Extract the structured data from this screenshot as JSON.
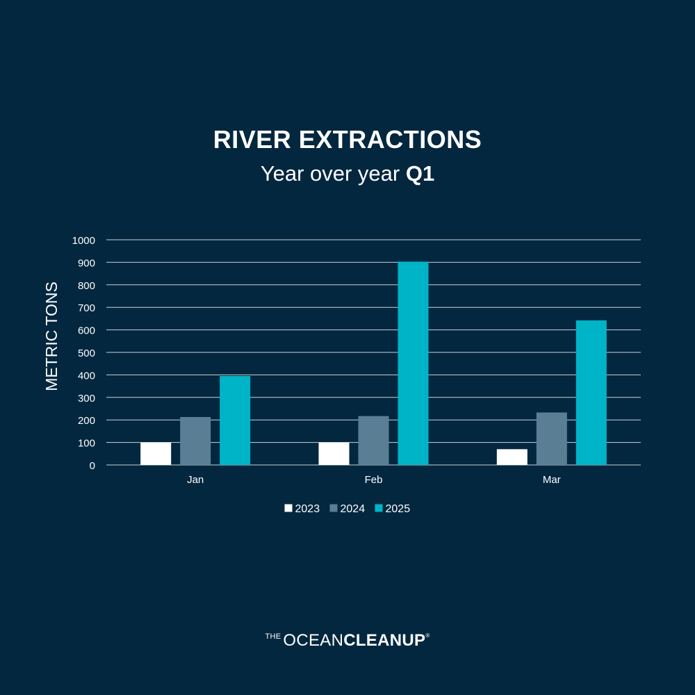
{
  "title": "RIVER EXTRACTIONS",
  "subtitle": {
    "text": "Year over year",
    "emphasis": "Q1"
  },
  "chart_data": {
    "type": "bar",
    "categories": [
      "Jan",
      "Feb",
      "Mar"
    ],
    "series": [
      {
        "name": "2023",
        "color": "#ffffff",
        "values": [
          100,
          100,
          70
        ]
      },
      {
        "name": "2024",
        "color": "#5a7f95",
        "values": [
          213,
          217,
          233
        ]
      },
      {
        "name": "2025",
        "color": "#00b4c8",
        "values": [
          395,
          903,
          642
        ]
      }
    ],
    "ylabel": "METRIC TONS",
    "ylim": [
      0,
      1000
    ],
    "yticks": [
      0,
      100,
      200,
      300,
      400,
      500,
      600,
      700,
      800,
      900,
      1000
    ],
    "grid": true,
    "legend": "bottom"
  },
  "logo": {
    "the": "THE",
    "ocean": "OCEAN",
    "cleanup": "CLEANUP",
    "registered": "®"
  }
}
